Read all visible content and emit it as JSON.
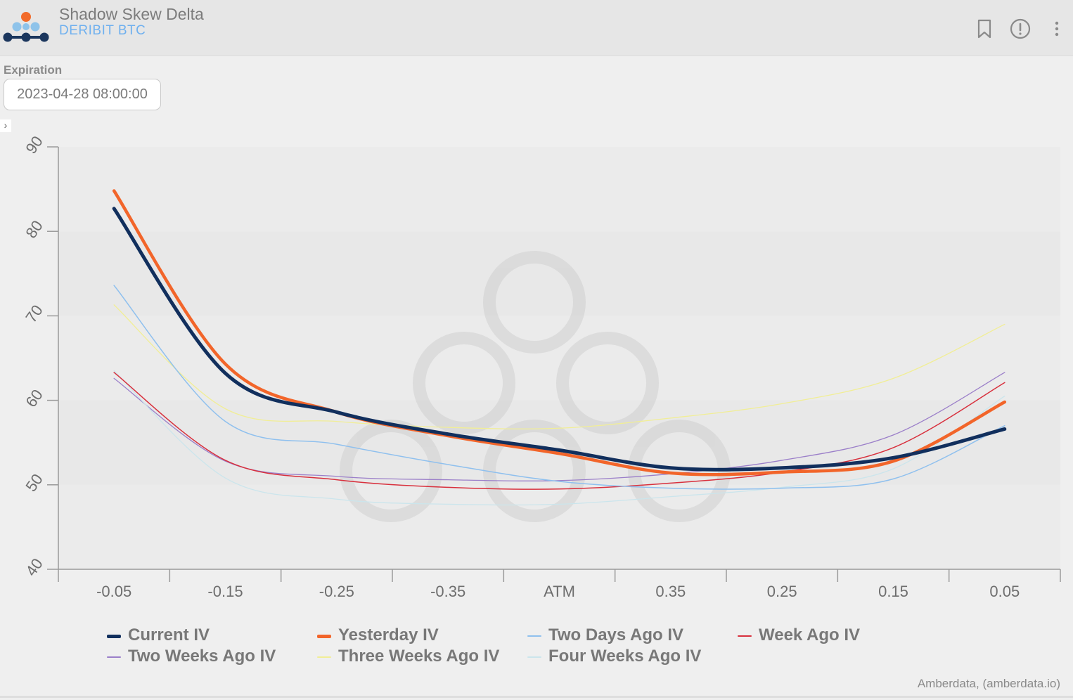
{
  "header": {
    "title": "Shadow Skew Delta",
    "subtitle": "DERIBIT BTC",
    "logo_colors": {
      "top": "#f26b2a",
      "middle": "#8ec3ea",
      "bottom": "#1b365d"
    },
    "icons": [
      "bookmark-icon",
      "info-icon",
      "more-icon"
    ]
  },
  "expiration": {
    "label": "Expiration",
    "value": "2023-04-28 08:00:00"
  },
  "credit": "Amberdata, (amberdata.io)",
  "chart_data": {
    "type": "line",
    "title": "",
    "xlabel": "",
    "ylabel": "",
    "categories": [
      "-0.05",
      "-0.15",
      "-0.25",
      "-0.35",
      "ATM",
      "0.35",
      "0.25",
      "0.15",
      "0.05"
    ],
    "ylim": [
      40,
      90
    ],
    "yticks": [
      40,
      50,
      60,
      70,
      80,
      90
    ],
    "grid": "alternating horizontal bands",
    "legend_position": "bottom",
    "series": [
      {
        "name": "Two Weeks Ago IV",
        "color": "#9b7fc9",
        "width": 1.3,
        "values": [
          62.6,
          52.8,
          51.0,
          50.6,
          50.5,
          51.3,
          52.9,
          55.9,
          63.3
        ]
      },
      {
        "name": "Three Weeks Ago IV",
        "color": "#f1ee96",
        "width": 1.3,
        "values": [
          71.3,
          59.0,
          57.5,
          56.8,
          56.7,
          57.9,
          59.6,
          62.6,
          69.0
        ]
      },
      {
        "name": "Four Weeks Ago IV",
        "color": "#cbe5ec",
        "width": 1.3,
        "values": [
          63.5,
          50.8,
          48.3,
          47.7,
          47.7,
          48.6,
          49.7,
          51.9,
          60.5
        ]
      },
      {
        "name": "Week Ago IV",
        "color": "#d8303d",
        "width": 1.5,
        "values": [
          63.3,
          52.9,
          50.6,
          49.7,
          49.5,
          50.2,
          51.5,
          54.4,
          62.1
        ]
      },
      {
        "name": "Two Days Ago IV",
        "color": "#8fc0ee",
        "width": 1.5,
        "values": [
          73.6,
          57.5,
          54.8,
          52.4,
          50.4,
          49.6,
          49.6,
          50.7,
          57.0
        ]
      },
      {
        "name": "Yesterday IV",
        "color": "#f2652a",
        "width": 4.5,
        "values": [
          84.8,
          64.3,
          58.6,
          55.8,
          53.7,
          51.4,
          51.5,
          52.8,
          59.8
        ]
      },
      {
        "name": "Current IV",
        "color": "#112f5d",
        "width": 5,
        "values": [
          82.7,
          63.2,
          58.6,
          56.0,
          54.1,
          52.0,
          52.0,
          53.2,
          56.6
        ]
      }
    ],
    "legend": [
      {
        "name": "Current IV",
        "color": "#112f5d"
      },
      {
        "name": "Yesterday IV",
        "color": "#f2652a"
      },
      {
        "name": "Two Days Ago IV",
        "color": "#8fc0ee"
      },
      {
        "name": "Week Ago IV",
        "color": "#d8303d"
      },
      {
        "name": "Two Weeks Ago IV",
        "color": "#9b7fc9"
      },
      {
        "name": "Three Weeks Ago IV",
        "color": "#f1ee96"
      },
      {
        "name": "Four Weeks Ago IV",
        "color": "#cbe5ec"
      }
    ]
  }
}
